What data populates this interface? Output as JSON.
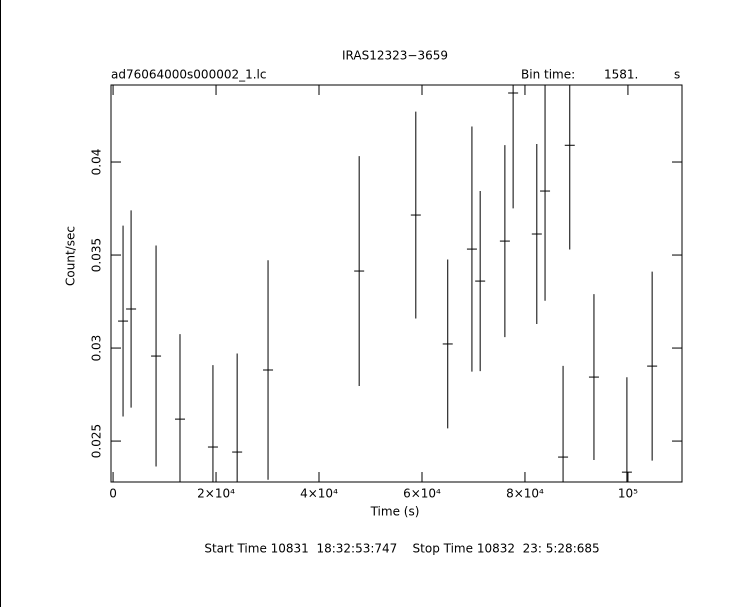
{
  "chart_data": {
    "type": "errorbar",
    "title": "IRAS12323−3659",
    "subtitle": "ad76064000s000002_1.lc",
    "bin_time_label": "Bin time:",
    "bin_time": "1581.",
    "bin_time_unit": "s",
    "xlabel": "Time (s)",
    "ylabel": "Count/sec",
    "footer": "Start Time 10831  18:32:53:747    Stop Time 10832  23: 5:28:685",
    "color": "#000000",
    "x": [
      1940,
      3500,
      8350,
      13000,
      19400,
      24100,
      30100,
      47800,
      58800,
      65000,
      69700,
      71300,
      76100,
      77700,
      82300,
      83900,
      87400,
      88700,
      93400,
      99800,
      104700
    ],
    "values": [
      0.03145,
      0.0321,
      0.02957,
      0.02618,
      0.02468,
      0.02441,
      0.02882,
      0.03414,
      0.03715,
      0.03022,
      0.03532,
      0.0336,
      0.03575,
      0.04371,
      0.03613,
      0.03844,
      0.02414,
      0.0409,
      0.02844,
      0.02333,
      0.02903
    ],
    "errors": [
      0.00513,
      0.0053,
      0.00594,
      0.00457,
      0.0044,
      0.0053,
      0.0059,
      0.00618,
      0.00556,
      0.00454,
      0.00659,
      0.00484,
      0.00516,
      0.0062,
      0.00484,
      0.0059,
      0.0049,
      0.0056,
      0.00446,
      0.0051,
      0.00508
    ],
    "xlim": [
      -400,
      110500
    ],
    "ylim": [
      0.0228,
      0.04414
    ],
    "xticks": [
      0,
      {
        "value": 20000,
        "label": "2×10⁴"
      },
      {
        "value": 40000,
        "label": "4×10⁴"
      },
      {
        "value": 60000,
        "label": "6×10⁴"
      },
      {
        "value": 80000,
        "label": "8×10⁴"
      },
      {
        "value": 100000,
        "label": "10⁵"
      }
    ],
    "yticks": [
      0.025,
      0.03,
      0.035,
      0.04
    ]
  }
}
